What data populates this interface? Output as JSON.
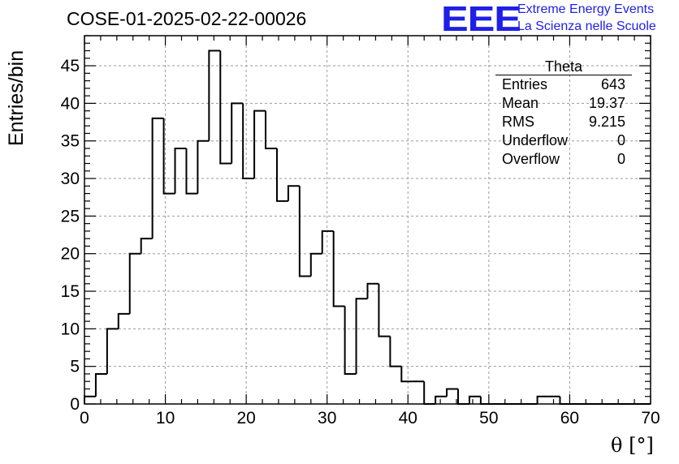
{
  "header": {
    "title": "COSE-01-2025-02-22-00026"
  },
  "logo": {
    "mark": "EEE",
    "line1": "Extreme Energy Events",
    "line2": "La Scienza nelle Scuole",
    "color": "#1f1fe6"
  },
  "stats_box": {
    "name": "Theta",
    "rows": [
      {
        "label": "Entries",
        "value": "643"
      },
      {
        "label": "Mean",
        "value": "19.37"
      },
      {
        "label": "RMS",
        "value": "9.215"
      },
      {
        "label": "Underflow",
        "value": "0"
      },
      {
        "label": "Overflow",
        "value": "0"
      }
    ]
  },
  "chart_data": {
    "type": "bar",
    "title": "COSE-01-2025-02-22-00026",
    "xlabel": "θ [°]",
    "ylabel": "Entries/bin",
    "xlim": [
      0,
      70
    ],
    "ylim": [
      0,
      49
    ],
    "grid": true,
    "bin_width": 1.4,
    "x_ticks": [
      0,
      10,
      20,
      30,
      40,
      50,
      60,
      70
    ],
    "y_ticks": [
      0,
      5,
      10,
      15,
      20,
      25,
      30,
      35,
      40,
      45
    ],
    "values": [
      1,
      4,
      10,
      12,
      20,
      22,
      38,
      28,
      34,
      28,
      35,
      47,
      32,
      40,
      30,
      39,
      34,
      27,
      29,
      17,
      20,
      23,
      13,
      4,
      14,
      16,
      9,
      5,
      3,
      3,
      0,
      1,
      2,
      0,
      1,
      0,
      0,
      0,
      0,
      0,
      1,
      1,
      0,
      0,
      0,
      0,
      0,
      0,
      0,
      0
    ],
    "line_color": "#000000",
    "grid_color": "#9a9a9a"
  }
}
